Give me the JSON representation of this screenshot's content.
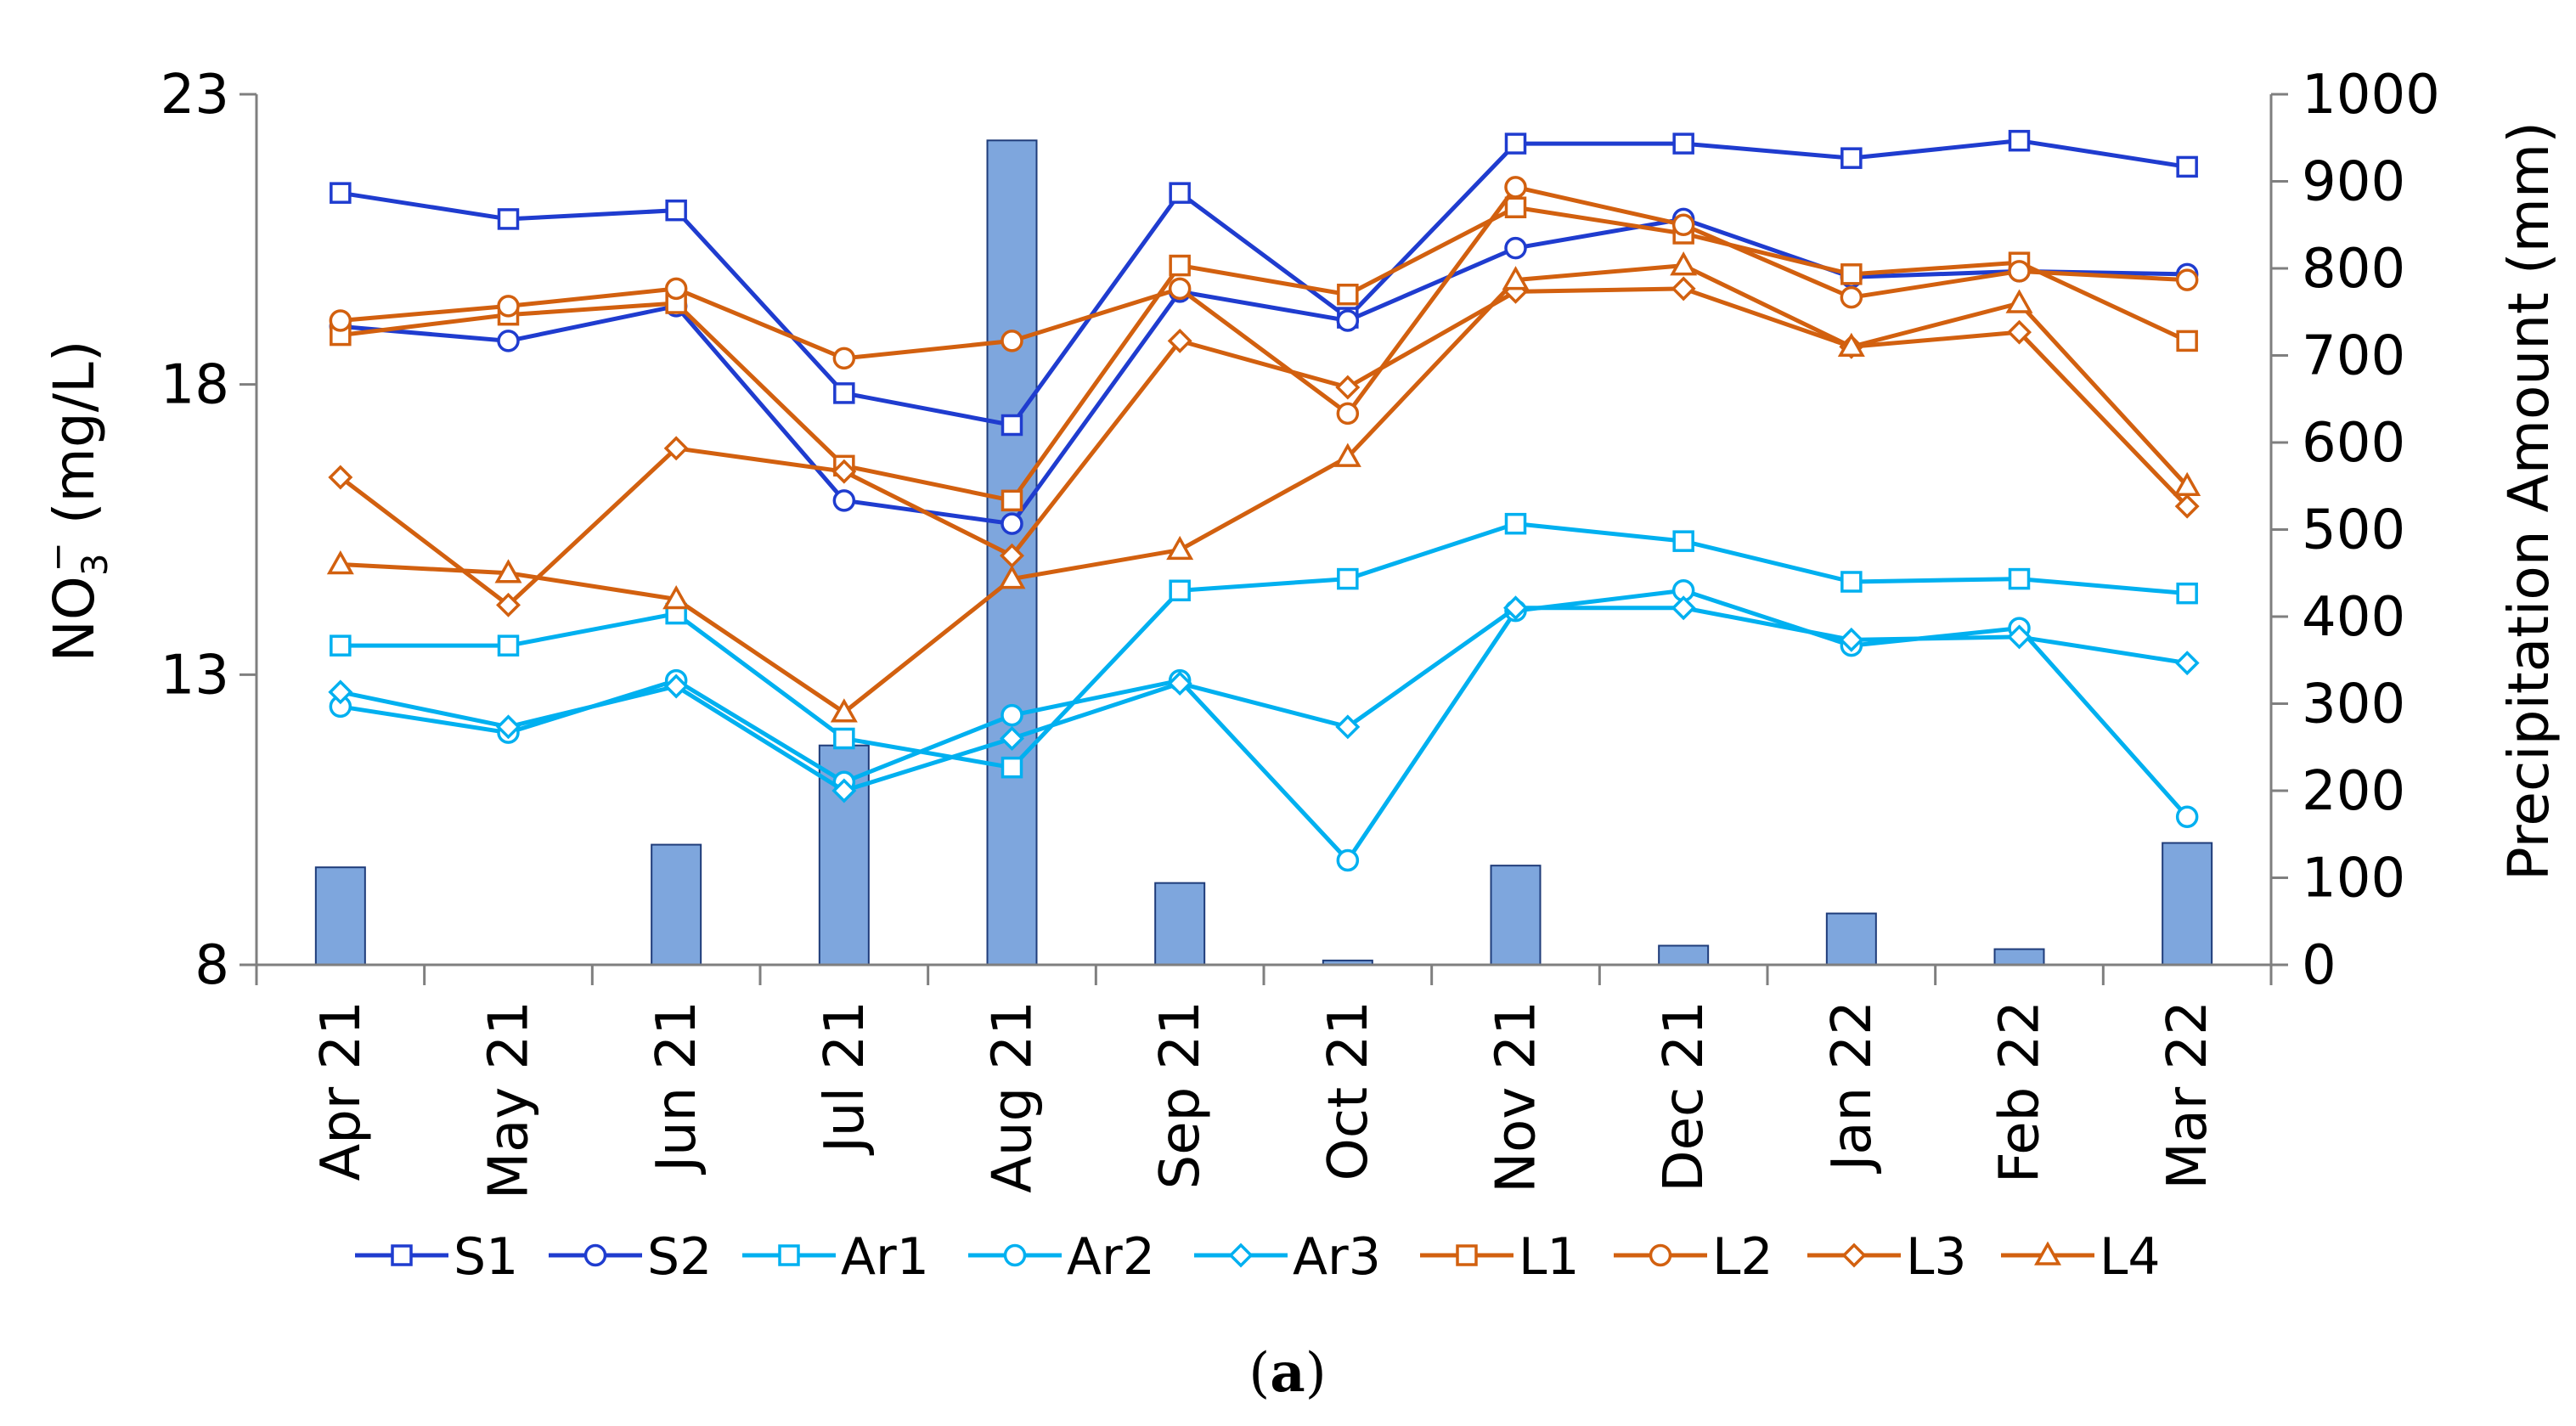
{
  "chart_data": {
    "type": "line",
    "title": "",
    "caption": "(a)",
    "caption_bold_letter": "a",
    "categories": [
      "Apr 21",
      "May 21",
      "Jun 21",
      "Jul 21",
      "Aug 21",
      "Sep 21",
      "Oct 21",
      "Nov 21",
      "Dec 21",
      "Jan 22",
      "Feb 22",
      "Mar 22"
    ],
    "ylabel_main": "NO",
    "ylabel_sub": "3",
    "ylabel_sup": "−",
    "ylabel_unit": " (mg/L)",
    "y2label": "Precipitation Amount (mm)",
    "ylim": [
      8,
      23
    ],
    "yticks": [
      "8",
      "13",
      "18",
      "23"
    ],
    "y2lim": [
      0,
      1000
    ],
    "y2ticks": [
      "0",
      "100",
      "200",
      "300",
      "400",
      "500",
      "600",
      "700",
      "800",
      "900",
      "1000"
    ],
    "grid": false,
    "legend_position": "bottom",
    "colors": {
      "dark_blue": "#1f3ccf",
      "light_blue": "#00b0f0",
      "orange": "#d2600f",
      "bar_fill": "#7ea6dd",
      "bar_stroke": "#1f3c7a"
    },
    "precipitation": {
      "name": "Precipitation",
      "values": [
        112,
        0,
        138,
        252,
        947,
        94,
        5,
        114,
        22,
        59,
        18,
        140
      ]
    },
    "series": [
      {
        "name": "S1",
        "color": "#1f3ccf",
        "marker": "square",
        "values": [
          21.3,
          20.85,
          21.0,
          17.85,
          17.3,
          21.3,
          19.15,
          22.15,
          22.15,
          21.9,
          22.2,
          21.75
        ]
      },
      {
        "name": "S2",
        "color": "#1f3ccf",
        "marker": "circle",
        "values": [
          19.0,
          18.75,
          19.35,
          16.0,
          15.6,
          19.6,
          19.1,
          20.35,
          20.85,
          19.85,
          19.95,
          19.9
        ]
      },
      {
        "name": "Ar1",
        "color": "#00b0f0",
        "marker": "square",
        "values": [
          13.5,
          13.5,
          14.05,
          11.9,
          11.4,
          14.45,
          14.65,
          15.6,
          15.3,
          14.6,
          14.65,
          14.4
        ]
      },
      {
        "name": "Ar2",
        "color": "#00b0f0",
        "marker": "circle",
        "values": [
          12.45,
          12.0,
          12.9,
          11.15,
          12.3,
          12.9,
          9.8,
          14.1,
          14.45,
          13.5,
          13.8,
          10.55
        ]
      },
      {
        "name": "Ar3",
        "color": "#00b0f0",
        "marker": "diamond",
        "values": [
          12.7,
          12.1,
          12.8,
          11.0,
          11.9,
          12.85,
          12.1,
          14.15,
          14.15,
          13.6,
          13.65,
          13.2
        ]
      },
      {
        "name": "L1",
        "color": "#d2600f",
        "marker": "square",
        "values": [
          18.85,
          19.2,
          19.4,
          16.6,
          16.0,
          20.05,
          19.55,
          21.05,
          20.6,
          19.9,
          20.1,
          18.75
        ]
      },
      {
        "name": "L2",
        "color": "#d2600f",
        "marker": "circle",
        "values": [
          19.1,
          19.35,
          19.65,
          18.45,
          18.75,
          19.65,
          17.5,
          21.4,
          20.75,
          19.5,
          19.95,
          19.8
        ]
      },
      {
        "name": "L3",
        "color": "#d2600f",
        "marker": "diamond",
        "values": [
          16.4,
          14.2,
          16.9,
          16.5,
          15.05,
          18.75,
          17.95,
          19.6,
          19.65,
          18.65,
          18.9,
          15.9
        ]
      },
      {
        "name": "L4",
        "color": "#d2600f",
        "marker": "triangle",
        "values": [
          14.9,
          14.75,
          14.3,
          12.35,
          14.65,
          15.15,
          16.75,
          19.8,
          20.05,
          18.65,
          19.4,
          16.25
        ]
      }
    ]
  }
}
